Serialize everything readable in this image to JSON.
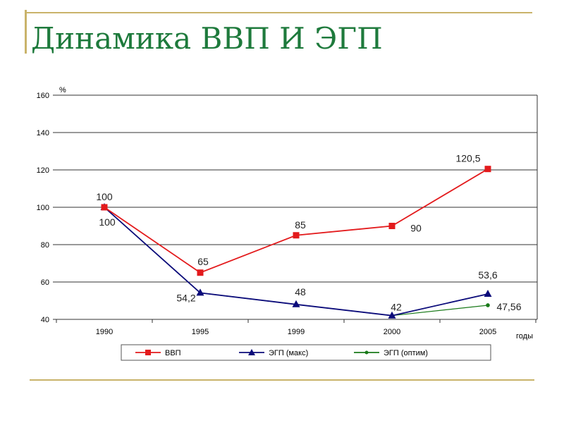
{
  "slide": {
    "title": "Динамика ВВП И ЭГП"
  },
  "colors": {
    "accent_rule": "#c9b36a",
    "title": "#1e7a3c"
  },
  "chart_data": {
    "type": "line",
    "categories": [
      "1990",
      "1995",
      "1999",
      "2000",
      "2005"
    ],
    "ylabel": "%",
    "xlabel": "годы",
    "ylim": [
      40,
      160
    ],
    "yticks": [
      40,
      60,
      80,
      100,
      120,
      140,
      160
    ],
    "grid": true,
    "legend_placement": "bottom",
    "series": [
      {
        "name": "ВВП",
        "color": "#e31a1c",
        "marker": "square",
        "values": [
          100,
          65,
          85,
          90,
          120.5
        ],
        "labels": [
          "100",
          "65",
          "85",
          "90",
          "120,5"
        ]
      },
      {
        "name": "ЭГП (макс)",
        "color": "#0b0b7a",
        "marker": "triangle",
        "values": [
          100,
          54.2,
          48,
          42,
          53.6
        ],
        "labels": [
          "100",
          "54,2",
          "48",
          "42",
          "53,6"
        ]
      },
      {
        "name": "ЭГП (оптим)",
        "color": "#1a7a1a",
        "marker": "circle",
        "values": [
          100,
          54.2,
          48,
          42,
          47.56
        ],
        "labels": [
          "",
          "",
          "",
          "",
          "47,56"
        ]
      }
    ]
  }
}
